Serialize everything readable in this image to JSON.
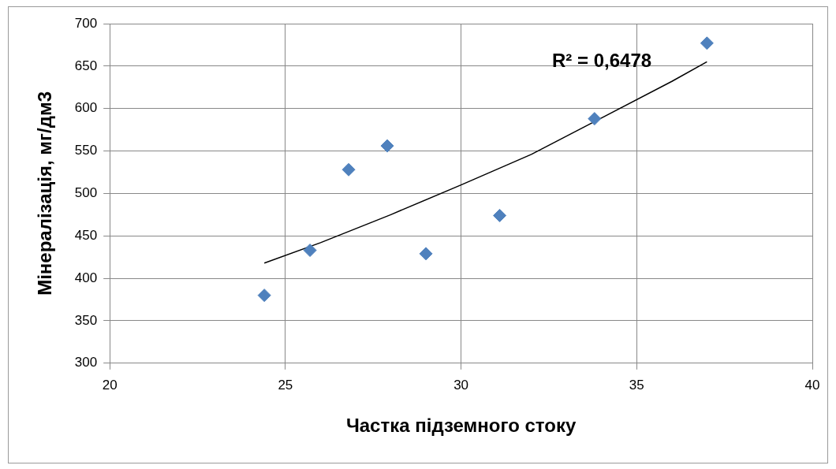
{
  "chart_data": {
    "type": "scatter",
    "xlabel": "Частка підземного стоку",
    "ylabel": "Мінералізація, мг/дм3",
    "xlim": [
      20,
      40
    ],
    "xticks": [
      20,
      25,
      30,
      35,
      40
    ],
    "ylim": [
      300,
      700
    ],
    "yticks": [
      300,
      350,
      400,
      450,
      500,
      550,
      600,
      650,
      700
    ],
    "grid": true,
    "legend": false,
    "annotations": [
      "R² = 0,6478"
    ],
    "series": [
      {
        "color": "#4f81bd",
        "marker": "diamond",
        "x": [
          24.4,
          25.7,
          26.8,
          27.9,
          29.0,
          31.1,
          33.8,
          37.0
        ],
        "values": [
          380,
          433,
          528,
          556,
          429,
          474,
          588,
          677
        ]
      },
      {
        "type": "line",
        "marker": "none",
        "color": "#000000",
        "x": [
          24.4,
          26,
          28,
          30,
          32,
          34,
          36,
          37
        ],
        "values": [
          418,
          442,
          475,
          510,
          546,
          589,
          632,
          655
        ]
      }
    ]
  }
}
